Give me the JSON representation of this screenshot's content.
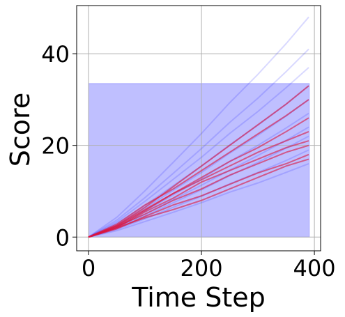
{
  "chart_data": {
    "type": "line",
    "xlabel": "Time Step",
    "ylabel": "Score",
    "x": [
      0,
      50,
      100,
      150,
      200,
      250,
      300,
      350,
      390
    ],
    "xlim": [
      -21,
      411
    ],
    "ylim": [
      -3,
      50.5
    ],
    "xticks": [
      0,
      200,
      400
    ],
    "yticks": [
      0,
      20,
      40
    ],
    "grid": true,
    "band": {
      "x": [
        0,
        391
      ],
      "y": [
        0,
        33.5
      ],
      "color": "#0000ff",
      "alpha": 0.25
    },
    "series": [
      {
        "color": "#0000ff",
        "alpha": 0.15,
        "values": [
          0,
          4.3,
          10.1,
          16.3,
          22.6,
          29.3,
          35.5,
          42.2,
          48
        ]
      },
      {
        "color": "#0000ff",
        "alpha": 0.15,
        "values": [
          0,
          3.7,
          8.6,
          13.9,
          19.3,
          25,
          30.3,
          36.1,
          41
        ]
      },
      {
        "color": "#0000ff",
        "alpha": 0.15,
        "values": [
          0,
          3.3,
          7.8,
          12.6,
          17.4,
          22.6,
          27.4,
          32.6,
          37
        ]
      },
      {
        "color": "#0000ff",
        "alpha": 0.15,
        "values": [
          0,
          3,
          6.9,
          11.2,
          15.5,
          20.1,
          24.4,
          29,
          33
        ]
      },
      {
        "color": "#0000ff",
        "alpha": 0.15,
        "values": [
          0,
          2.7,
          6.3,
          10.2,
          14.1,
          18.3,
          22.2,
          26.4,
          30
        ]
      },
      {
        "color": "#0000ff",
        "alpha": 0.15,
        "values": [
          0,
          2.4,
          5.7,
          9.2,
          12.7,
          16.5,
          20,
          23.8,
          27
        ]
      },
      {
        "color": "#0000ff",
        "alpha": 0.15,
        "values": [
          0,
          2.2,
          5,
          8.2,
          11.3,
          14.6,
          17.8,
          21.1,
          24
        ]
      },
      {
        "color": "#0000ff",
        "alpha": 0.15,
        "values": [
          0,
          2,
          4.6,
          7.5,
          10.3,
          13.4,
          16.3,
          19.4,
          22
        ]
      },
      {
        "color": "#0000ff",
        "alpha": 0.15,
        "values": [
          0,
          1.7,
          4,
          6.5,
          8.9,
          11.6,
          14.1,
          16.7,
          19
        ]
      },
      {
        "color": "#0000ff",
        "alpha": 0.15,
        "values": [
          0,
          1.4,
          3.4,
          5.4,
          7.5,
          9.8,
          11.8,
          14.1,
          16
        ]
      },
      {
        "color": "#dc143c",
        "alpha": 0.6,
        "values": [
          0,
          2.5,
          6.5,
          11,
          15.5,
          20,
          24.5,
          29,
          33
        ]
      },
      {
        "color": "#dc143c",
        "alpha": 0.6,
        "values": [
          0,
          2.8,
          7,
          10.5,
          14.5,
          18.5,
          22.5,
          26.5,
          30
        ]
      },
      {
        "color": "#dc143c",
        "alpha": 0.6,
        "values": [
          0,
          2.2,
          5.8,
          9.5,
          13,
          16.5,
          19.5,
          23,
          26
        ]
      },
      {
        "color": "#dc143c",
        "alpha": 0.6,
        "values": [
          0,
          2.5,
          6,
          9.5,
          12.5,
          15.5,
          18.5,
          21,
          23
        ]
      },
      {
        "color": "#dc143c",
        "alpha": 0.6,
        "values": [
          0,
          2,
          5.5,
          8.5,
          12,
          14.5,
          17,
          19.5,
          21
        ]
      },
      {
        "color": "#dc143c",
        "alpha": 0.6,
        "values": [
          0,
          2.3,
          5,
          8,
          10.5,
          13.5,
          16,
          18.5,
          20
        ]
      },
      {
        "color": "#dc143c",
        "alpha": 0.6,
        "values": [
          0,
          1.8,
          4.5,
          7,
          9,
          11.5,
          14,
          16,
          18
        ]
      },
      {
        "color": "#dc143c",
        "alpha": 0.6,
        "values": [
          0,
          2,
          4.2,
          6,
          8,
          10.5,
          13,
          15.5,
          17
        ]
      }
    ]
  }
}
